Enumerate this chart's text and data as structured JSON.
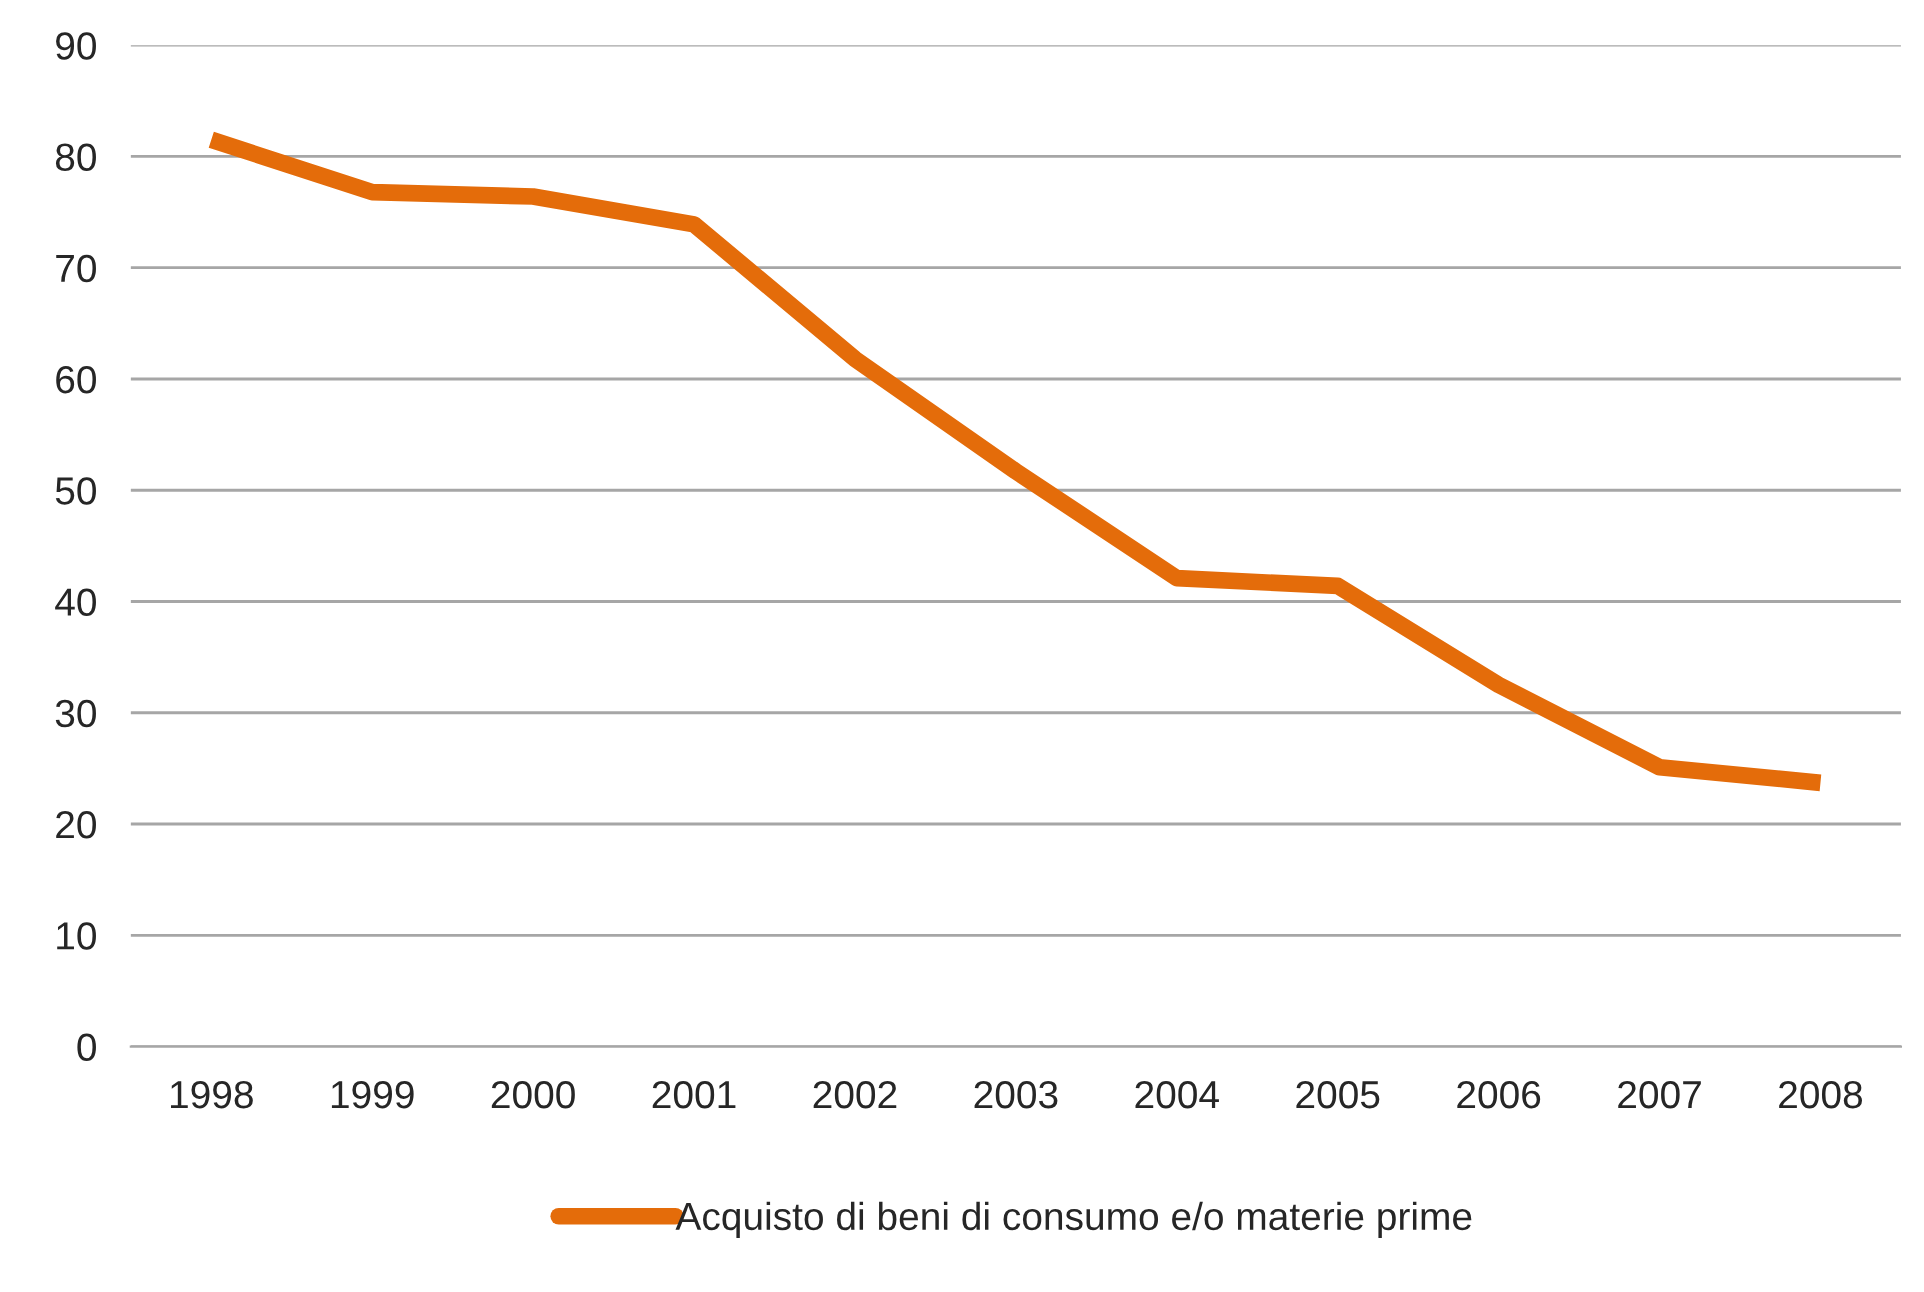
{
  "chart_data": {
    "type": "line",
    "categories": [
      "1998",
      "1999",
      "2000",
      "2001",
      "2002",
      "2003",
      "2004",
      "2005",
      "2006",
      "2007",
      "2008"
    ],
    "series": [
      {
        "name": "Acquisto di beni di consumo e/o materie prime",
        "color": "#e46c0a",
        "values": [
          81.5,
          76.8,
          76.4,
          73.9,
          61.8,
          51.7,
          42.1,
          41.4,
          32.5,
          25.1,
          23.7
        ]
      }
    ],
    "ylim": [
      0,
      90
    ],
    "yticks": [
      0,
      10,
      20,
      30,
      40,
      50,
      60,
      70,
      80,
      90
    ],
    "grid": "y",
    "legend": "bottom",
    "marker": "none",
    "line_style": "solid"
  }
}
